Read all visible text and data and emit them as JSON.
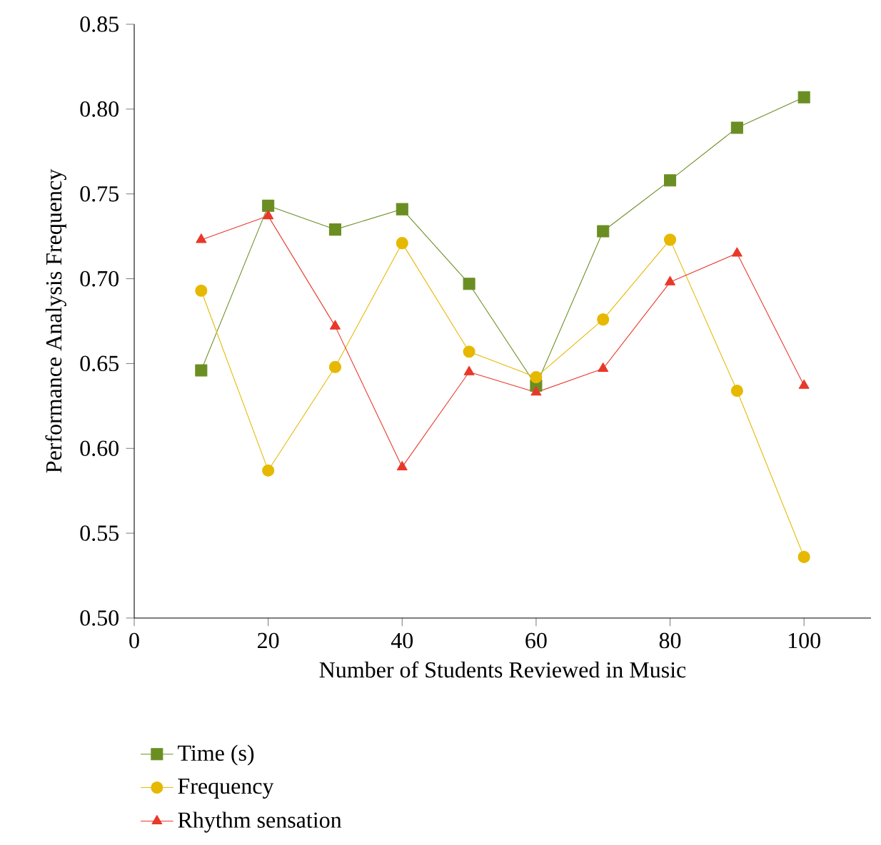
{
  "chart_data": {
    "type": "line",
    "xlabel": "Number of Students Reviewed in Music",
    "ylabel": "Performance Analysis Frequency",
    "x": [
      10,
      20,
      30,
      40,
      50,
      60,
      70,
      80,
      90,
      100
    ],
    "series": [
      {
        "name": "Time (s)",
        "color": "#6b8e23",
        "marker": "square",
        "values": [
          0.646,
          0.743,
          0.729,
          0.741,
          0.697,
          0.637,
          0.728,
          0.758,
          0.789,
          0.807
        ]
      },
      {
        "name": "Frequency",
        "color": "#e6b800",
        "marker": "circle",
        "values": [
          0.693,
          0.587,
          0.648,
          0.721,
          0.657,
          0.642,
          0.676,
          0.723,
          0.634,
          0.536
        ]
      },
      {
        "name": "Rhythm sensation",
        "color": "#e8382a",
        "marker": "triangle",
        "values": [
          0.723,
          0.737,
          0.672,
          0.589,
          0.645,
          0.633,
          0.647,
          0.698,
          0.715,
          0.637
        ]
      }
    ],
    "xlim": [
      0,
      110
    ],
    "xticks": [
      0,
      20,
      40,
      60,
      80,
      100
    ],
    "ylim": [
      0.5,
      0.85
    ],
    "yticks": [
      {
        "value": 0.5,
        "label": "0.50"
      },
      {
        "value": 0.55,
        "label": "0.55"
      },
      {
        "value": 0.6,
        "label": "0.60"
      },
      {
        "value": 0.65,
        "label": "0.65"
      },
      {
        "value": 0.7,
        "label": "0.70"
      },
      {
        "value": 0.75,
        "label": "0.75"
      },
      {
        "value": 0.8,
        "label": "0.80"
      },
      {
        "value": 0.85,
        "label": "0.85"
      }
    ],
    "legend": "bottom",
    "grid": false,
    "line_style": "solid"
  }
}
